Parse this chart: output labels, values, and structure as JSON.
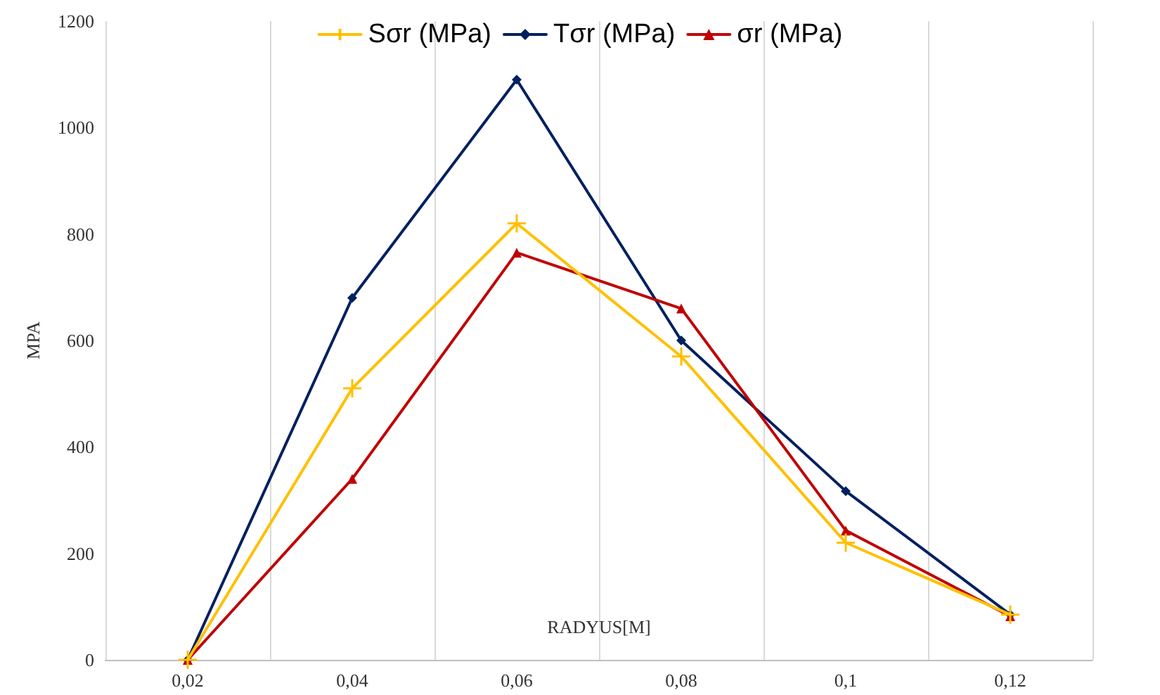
{
  "chart_data": {
    "type": "line",
    "xlabel": "RADYUS[M]",
    "ylabel": "MPA",
    "categories": [
      "0,02",
      "0,04",
      "0,06",
      "0,08",
      "0,1",
      "0,12"
    ],
    "series": [
      {
        "name": "Sσr (MPa)",
        "color": "#ffc000",
        "marker": "cross",
        "values": [
          0,
          510,
          820,
          570,
          220,
          85
        ]
      },
      {
        "name": "Tσr (MPa)",
        "color": "#002060",
        "marker": "diamond",
        "values": [
          0,
          680,
          1090,
          600,
          317,
          85
        ]
      },
      {
        "name": "σr (MPa)",
        "color": "#c00000",
        "marker": "triangle",
        "values": [
          0,
          340,
          765,
          660,
          243,
          82
        ]
      }
    ],
    "ylim": [
      0,
      1200
    ],
    "yticks": [
      0,
      200,
      400,
      600,
      800,
      1000,
      1200
    ],
    "grid": "x",
    "legend": "top",
    "line_style": "solid"
  }
}
